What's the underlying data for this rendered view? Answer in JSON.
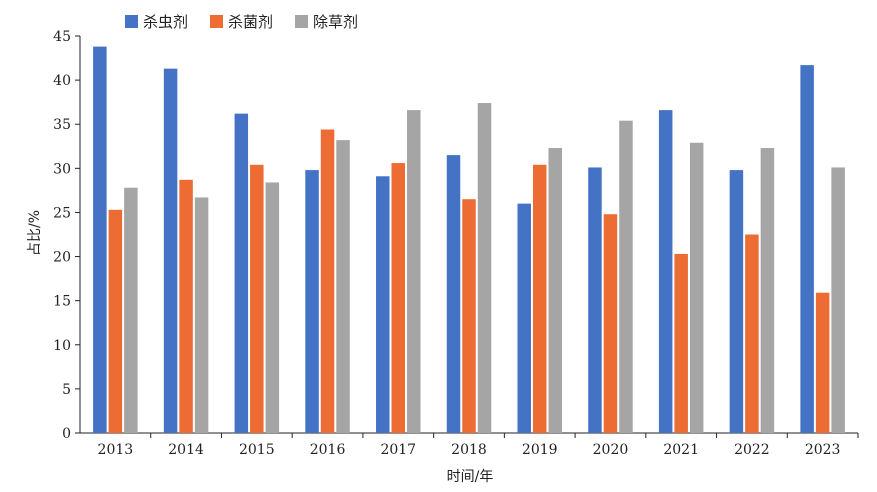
{
  "chart_data": {
    "type": "bar",
    "title": "",
    "xlabel": "时间/年",
    "ylabel": "占比/%",
    "ylim": [
      0,
      45
    ],
    "yticks": [
      0,
      5,
      10,
      15,
      20,
      25,
      30,
      35,
      40,
      45
    ],
    "grid": false,
    "legend_position": "top-left",
    "categories": [
      "2013",
      "2014",
      "2015",
      "2016",
      "2017",
      "2018",
      "2019",
      "2020",
      "2021",
      "2022",
      "2023"
    ],
    "series": [
      {
        "name": "杀虫剂",
        "color": "#4472c4",
        "values": [
          43.8,
          41.3,
          36.2,
          29.8,
          29.1,
          31.5,
          26.0,
          30.1,
          36.6,
          29.8,
          41.7
        ]
      },
      {
        "name": "杀菌剂",
        "color": "#ed6c33",
        "values": [
          25.3,
          28.7,
          30.4,
          34.4,
          30.6,
          26.5,
          30.4,
          24.8,
          20.3,
          22.5,
          15.9
        ]
      },
      {
        "name": "除草剂",
        "color": "#a5a5a5",
        "values": [
          27.8,
          26.7,
          28.4,
          33.2,
          36.6,
          37.4,
          32.3,
          35.4,
          32.9,
          32.3,
          30.1
        ]
      }
    ]
  }
}
